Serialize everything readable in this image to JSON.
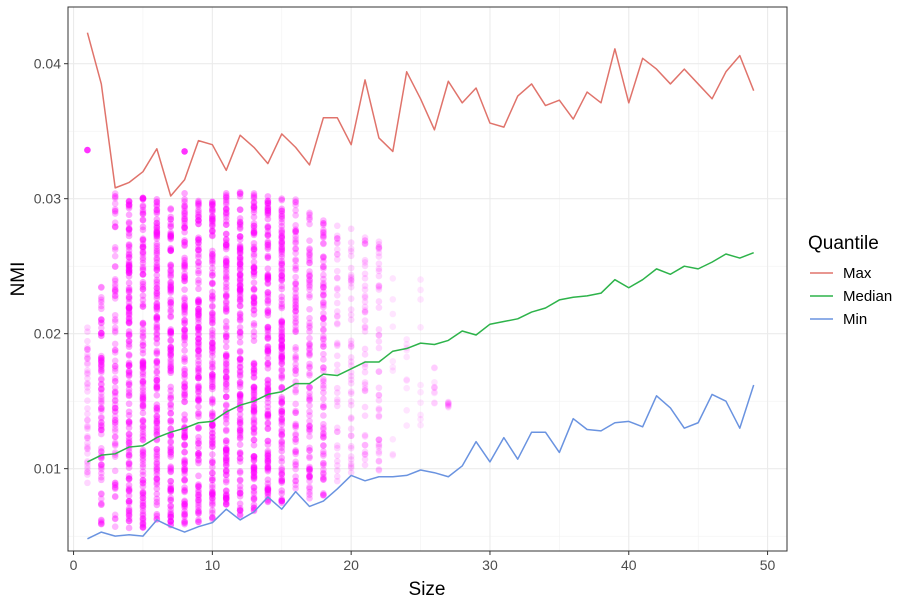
{
  "chart_data": {
    "type": "line",
    "xlabel": "Size",
    "ylabel": "NMI",
    "xlim": [
      -0.4,
      51.4
    ],
    "ylim": [
      0.0039,
      0.0442
    ],
    "x_ticks": [
      0,
      10,
      20,
      30,
      40,
      50
    ],
    "y_ticks": [
      0.01,
      0.02,
      0.03,
      0.04
    ],
    "x_tick_labels": [
      "0",
      "10",
      "20",
      "30",
      "40",
      "50"
    ],
    "y_tick_labels": [
      "0.01",
      "0.02",
      "0.03",
      "0.04"
    ],
    "grid": true,
    "legend": {
      "title": "Quantile",
      "position": "right"
    },
    "series": [
      {
        "name": "Max",
        "color": "#e0736b",
        "x": [
          1,
          2,
          3,
          4,
          5,
          6,
          7,
          8,
          9,
          10,
          11,
          12,
          13,
          14,
          15,
          16,
          17,
          18,
          19,
          20,
          21,
          22,
          23,
          24,
          25,
          26,
          27,
          28,
          29,
          30,
          31,
          32,
          33,
          34,
          35,
          36,
          37,
          38,
          39,
          40,
          41,
          42,
          43,
          44,
          45,
          46,
          47,
          48,
          49
        ],
        "values": [
          0.0423,
          0.0385,
          0.0308,
          0.0312,
          0.032,
          0.0337,
          0.0302,
          0.0314,
          0.0343,
          0.034,
          0.0321,
          0.0347,
          0.0338,
          0.0326,
          0.0348,
          0.0338,
          0.0325,
          0.036,
          0.036,
          0.034,
          0.0388,
          0.0345,
          0.0335,
          0.0394,
          0.0374,
          0.0351,
          0.0387,
          0.0371,
          0.0382,
          0.0356,
          0.0353,
          0.0376,
          0.0385,
          0.0369,
          0.0373,
          0.0359,
          0.0379,
          0.0371,
          0.0411,
          0.0371,
          0.0404,
          0.0396,
          0.0385,
          0.0396,
          0.0385,
          0.0374,
          0.0394,
          0.0406,
          0.038
        ]
      },
      {
        "name": "Median",
        "color": "#2db34a",
        "x": [
          1,
          2,
          3,
          4,
          5,
          6,
          7,
          8,
          9,
          10,
          11,
          12,
          13,
          14,
          15,
          16,
          17,
          18,
          19,
          20,
          21,
          22,
          23,
          24,
          25,
          26,
          27,
          28,
          29,
          30,
          31,
          32,
          33,
          34,
          35,
          36,
          37,
          38,
          39,
          40,
          41,
          42,
          43,
          44,
          45,
          46,
          47,
          48,
          49
        ],
        "values": [
          0.0105,
          0.011,
          0.0111,
          0.0116,
          0.0117,
          0.0123,
          0.0127,
          0.013,
          0.0134,
          0.0135,
          0.0142,
          0.0147,
          0.015,
          0.0155,
          0.0157,
          0.0163,
          0.0163,
          0.017,
          0.0169,
          0.0174,
          0.0179,
          0.0179,
          0.0187,
          0.0189,
          0.0193,
          0.0192,
          0.0195,
          0.0202,
          0.0199,
          0.0207,
          0.0209,
          0.0211,
          0.0216,
          0.0219,
          0.0225,
          0.0227,
          0.0228,
          0.023,
          0.024,
          0.0234,
          0.024,
          0.0248,
          0.0244,
          0.025,
          0.0248,
          0.0253,
          0.0259,
          0.0256,
          0.026
        ]
      },
      {
        "name": "Min",
        "color": "#6a93e0",
        "x": [
          1,
          2,
          3,
          4,
          5,
          6,
          7,
          8,
          9,
          10,
          11,
          12,
          13,
          14,
          15,
          16,
          17,
          18,
          19,
          20,
          21,
          22,
          23,
          24,
          25,
          26,
          27,
          28,
          29,
          30,
          31,
          32,
          33,
          34,
          35,
          36,
          37,
          38,
          39,
          40,
          41,
          42,
          43,
          44,
          45,
          46,
          47,
          48,
          49
        ],
        "values": [
          0.0048,
          0.0053,
          0.005,
          0.0051,
          0.005,
          0.0062,
          0.0057,
          0.0053,
          0.0057,
          0.006,
          0.007,
          0.0062,
          0.0068,
          0.0079,
          0.007,
          0.0083,
          0.0072,
          0.0076,
          0.0085,
          0.0095,
          0.0091,
          0.0094,
          0.0094,
          0.0095,
          0.0099,
          0.0097,
          0.0094,
          0.0102,
          0.012,
          0.0105,
          0.0123,
          0.0107,
          0.0127,
          0.0127,
          0.0112,
          0.0137,
          0.0129,
          0.0128,
          0.0134,
          0.0135,
          0.0131,
          0.0154,
          0.0145,
          0.013,
          0.0134,
          0.0155,
          0.015,
          0.013,
          0.0162
        ]
      }
    ],
    "scatter": {
      "color": "#ff00ff",
      "columns": [
        {
          "x": 1,
          "ymin": 0.0075,
          "ymax": 0.0205,
          "extra": [
            0.0336
          ],
          "density": "sparse"
        },
        {
          "x": 2,
          "ymin": 0.0058,
          "ymax": 0.0235,
          "extra": [],
          "density": "medium"
        },
        {
          "x": 3,
          "ymin": 0.0055,
          "ymax": 0.0308,
          "extra": [],
          "density": "medium"
        },
        {
          "x": 4,
          "ymin": 0.0055,
          "ymax": 0.03,
          "extra": [],
          "density": "dense"
        },
        {
          "x": 5,
          "ymin": 0.0055,
          "ymax": 0.031,
          "extra": [],
          "density": "dense"
        },
        {
          "x": 6,
          "ymin": 0.006,
          "ymax": 0.03,
          "extra": [],
          "density": "dense"
        },
        {
          "x": 7,
          "ymin": 0.0058,
          "ymax": 0.03,
          "extra": [],
          "density": "dense"
        },
        {
          "x": 8,
          "ymin": 0.0055,
          "ymax": 0.0305,
          "extra": [
            0.0335
          ],
          "density": "dense"
        },
        {
          "x": 9,
          "ymin": 0.006,
          "ymax": 0.0305,
          "extra": [],
          "density": "dense"
        },
        {
          "x": 10,
          "ymin": 0.0062,
          "ymax": 0.0305,
          "extra": [],
          "density": "dense"
        },
        {
          "x": 11,
          "ymin": 0.007,
          "ymax": 0.0305,
          "extra": [],
          "density": "dense"
        },
        {
          "x": 12,
          "ymin": 0.0065,
          "ymax": 0.0305,
          "extra": [],
          "density": "dense"
        },
        {
          "x": 13,
          "ymin": 0.0068,
          "ymax": 0.0305,
          "extra": [],
          "density": "dense"
        },
        {
          "x": 14,
          "ymin": 0.0075,
          "ymax": 0.0305,
          "extra": [],
          "density": "dense"
        },
        {
          "x": 15,
          "ymin": 0.0072,
          "ymax": 0.0305,
          "extra": [],
          "density": "dense"
        },
        {
          "x": 16,
          "ymin": 0.0085,
          "ymax": 0.03,
          "extra": [],
          "density": "medium"
        },
        {
          "x": 17,
          "ymin": 0.0075,
          "ymax": 0.029,
          "extra": [],
          "density": "medium"
        },
        {
          "x": 18,
          "ymin": 0.008,
          "ymax": 0.0285,
          "extra": [],
          "density": "medium"
        },
        {
          "x": 19,
          "ymin": 0.0088,
          "ymax": 0.028,
          "extra": [],
          "density": "sparse"
        },
        {
          "x": 20,
          "ymin": 0.0095,
          "ymax": 0.028,
          "extra": [],
          "density": "sparse"
        },
        {
          "x": 21,
          "ymin": 0.0095,
          "ymax": 0.0275,
          "extra": [],
          "density": "sparse"
        },
        {
          "x": 22,
          "ymin": 0.0098,
          "ymax": 0.027,
          "extra": [],
          "density": "sparse"
        },
        {
          "x": 23,
          "ymin": 0.0098,
          "ymax": 0.0245,
          "extra": [],
          "density": "faint"
        },
        {
          "x": 24,
          "ymin": 0.0105,
          "ymax": 0.0215,
          "extra": [],
          "density": "faint"
        },
        {
          "x": 25,
          "ymin": 0.011,
          "ymax": 0.0245,
          "extra": [],
          "density": "faint"
        },
        {
          "x": 26,
          "ymin": 0.0145,
          "ymax": 0.0175,
          "extra": [],
          "density": "faint"
        },
        {
          "x": 27,
          "ymin": 0.0145,
          "ymax": 0.015,
          "extra": [],
          "density": "faint"
        }
      ]
    }
  }
}
